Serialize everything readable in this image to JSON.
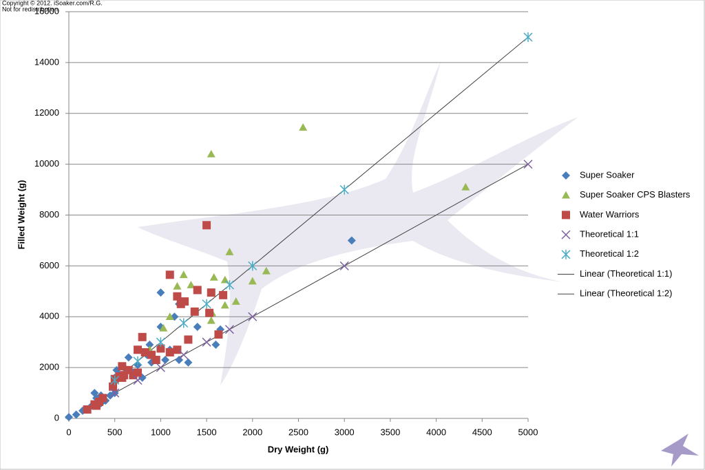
{
  "chart_data": {
    "type": "scatter",
    "notes": [
      "Copyright © 2012. iSoaker.com/R.G.",
      "Not for redistribution."
    ],
    "x_label": "Dry Weight (g)",
    "y_label": "Filled Weight (g)",
    "xlim": [
      0,
      5000
    ],
    "xticks": [
      0,
      500,
      1000,
      1500,
      2000,
      2500,
      3000,
      3500,
      4000,
      4500,
      5000
    ],
    "ylim": [
      0,
      16000
    ],
    "yticks": [
      0,
      2000,
      4000,
      6000,
      8000,
      10000,
      12000,
      14000,
      16000
    ],
    "grid": true,
    "legend": "right",
    "series": [
      {
        "name": "Super Soaker",
        "color": "#4a7ebb",
        "marker": "diamond",
        "x": [
          0,
          80,
          150,
          250,
          280,
          300,
          350,
          400,
          450,
          480,
          500,
          520,
          550,
          600,
          650,
          700,
          750,
          800,
          850,
          880,
          900,
          950,
          1000,
          1000,
          1050,
          1100,
          1150,
          1200,
          1200,
          1250,
          1300,
          1400,
          1600,
          1650,
          3080,
          500,
          350
        ],
        "values": [
          50,
          150,
          300,
          500,
          1000,
          800,
          900,
          700,
          900,
          1200,
          1600,
          1900,
          1700,
          2000,
          2400,
          1800,
          2100,
          1600,
          2500,
          2900,
          2200,
          2300,
          4950,
          3600,
          2300,
          2700,
          4000,
          2300,
          4500,
          4600,
          2200,
          3600,
          2900,
          3500,
          7000,
          1000,
          600
        ]
      },
      {
        "name": "Super Soaker CPS Blasters",
        "color": "#98b954",
        "marker": "triangle",
        "x": [
          1550,
          2550,
          4320,
          1750,
          1250,
          1580,
          1700,
          1180,
          1330,
          2000,
          2150,
          1550,
          1700,
          1820,
          1100,
          1030,
          880,
          1560
        ],
        "values": [
          10400,
          11450,
          9100,
          6550,
          5650,
          5550,
          5450,
          5200,
          5250,
          5400,
          5800,
          3850,
          4450,
          4600,
          4000,
          3550,
          2700,
          4150
        ]
      },
      {
        "name": "Water Warriors",
        "color": "#be4b48",
        "marker": "square",
        "x": [
          1500,
          1100,
          1180,
          1400,
          1550,
          1680,
          1260,
          1220,
          1370,
          1530,
          1630,
          1300,
          800,
          750,
          830,
          950,
          1000,
          1100,
          1180,
          580,
          650,
          700,
          750,
          600,
          480,
          500,
          550,
          370,
          330,
          300,
          200,
          280,
          580,
          900
        ],
        "values": [
          7600,
          5650,
          4800,
          5050,
          4950,
          4850,
          4600,
          4500,
          4200,
          4150,
          3300,
          3100,
          3200,
          2700,
          2600,
          2300,
          2750,
          2600,
          2700,
          2050,
          1900,
          1700,
          1800,
          1700,
          1250,
          1550,
          1650,
          800,
          650,
          500,
          350,
          550,
          1600,
          2500
        ]
      },
      {
        "name": "Theoretical 1:1",
        "color": "#7d60a0",
        "marker": "x",
        "x": [
          500,
          750,
          1000,
          1250,
          1500,
          1750,
          2000,
          3000,
          5000
        ],
        "values": [
          1000,
          1500,
          2000,
          2500,
          3000,
          3500,
          4000,
          6000,
          10000
        ]
      },
      {
        "name": "Theoretical 1:2",
        "color": "#4bacc6",
        "marker": "star",
        "x": [
          500,
          750,
          1000,
          1250,
          1500,
          1750,
          2000,
          3000,
          5000
        ],
        "values": [
          1500,
          2250,
          3000,
          3750,
          4500,
          5250,
          6000,
          9000,
          15000
        ]
      },
      {
        "name": "Linear (Theoretical 1:1)",
        "color": "#404040",
        "marker": "line",
        "fit": "Theoretical 1:1"
      },
      {
        "name": "Linear (Theoretical 1:2)",
        "color": "#404040",
        "marker": "line",
        "fit": "Theoretical 1:2"
      }
    ]
  }
}
